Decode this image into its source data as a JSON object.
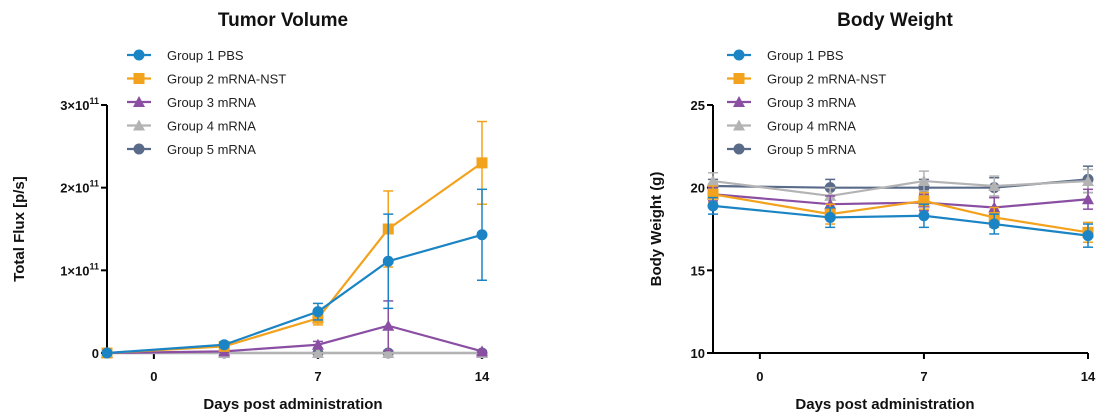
{
  "chart_data": [
    {
      "type": "line",
      "title": "Tumor Volume",
      "xlabel": "Days post administration",
      "ylabel": "Total Flux [p/s]",
      "xlim": [
        -2,
        14
      ],
      "ylim": [
        0,
        300000000000
      ],
      "xticks": [
        0,
        7,
        14
      ],
      "xtick_labels": [
        "0",
        "7",
        "14"
      ],
      "yticks": [
        0,
        100000000000,
        200000000000,
        300000000000
      ],
      "ytick_labels": [
        {
          "mant": "0",
          "exp": ""
        },
        {
          "mant": "1×10",
          "exp": "11"
        },
        {
          "mant": "2×10",
          "exp": "11"
        },
        {
          "mant": "3×10",
          "exp": "11"
        }
      ],
      "legend_position": "top-left",
      "series": [
        {
          "name": "Group 1 PBS",
          "color": "#1b84c4",
          "marker": "circle",
          "x": [
            -2,
            3,
            7,
            10,
            14
          ],
          "y": [
            0,
            10000000000,
            50000000000,
            111000000000,
            143000000000
          ],
          "err": [
            0,
            3000000000,
            10000000000,
            57000000000,
            55000000000
          ]
        },
        {
          "name": "Group 2 mRNA-NST",
          "color": "#f2a21c",
          "marker": "square",
          "x": [
            -2,
            3,
            7,
            10,
            14
          ],
          "y": [
            0,
            8000000000,
            42000000000,
            150000000000,
            230000000000
          ],
          "err": [
            0,
            3000000000,
            8000000000,
            46000000000,
            50000000000
          ]
        },
        {
          "name": "Group 3 mRNA",
          "color": "#8a4fa3",
          "marker": "triangle",
          "x": [
            -2,
            3,
            7,
            10,
            14
          ],
          "y": [
            0,
            2000000000,
            10000000000,
            33000000000,
            2000000000
          ],
          "err": [
            0,
            1000000000,
            4000000000,
            30000000000,
            1000000000
          ]
        },
        {
          "name": "Group 4 mRNA",
          "color": "#b3b3b3",
          "marker": "triangle",
          "x": [
            -2,
            3,
            7,
            10,
            14
          ],
          "y": [
            0,
            0,
            0,
            0,
            0
          ],
          "err": [
            0,
            0,
            0,
            0,
            0
          ]
        },
        {
          "name": "Group 5 mRNA",
          "color": "#5a6b89",
          "marker": "circle",
          "x": [
            -2,
            3,
            7,
            10,
            14
          ],
          "y": [
            0,
            0,
            0,
            0,
            0
          ],
          "err": [
            0,
            0,
            0,
            0,
            0
          ]
        }
      ]
    },
    {
      "type": "line",
      "title": "Body Weight",
      "xlabel": "Days post administration",
      "ylabel": "Body Weight (g)",
      "xlim": [
        -2,
        14
      ],
      "ylim": [
        10,
        25
      ],
      "xticks": [
        0,
        7,
        14
      ],
      "xtick_labels": [
        "0",
        "7",
        "14"
      ],
      "yticks": [
        10,
        15,
        20,
        25
      ],
      "ytick_labels": [
        {
          "mant": "10",
          "exp": ""
        },
        {
          "mant": "15",
          "exp": ""
        },
        {
          "mant": "20",
          "exp": ""
        },
        {
          "mant": "25",
          "exp": ""
        }
      ],
      "legend_position": "top-left",
      "series": [
        {
          "name": "Group 1 PBS",
          "color": "#1b84c4",
          "marker": "circle",
          "x": [
            -2,
            3,
            7,
            10,
            14
          ],
          "y": [
            18.9,
            18.2,
            18.3,
            17.8,
            17.1
          ],
          "err": [
            0.5,
            0.6,
            0.7,
            0.6,
            0.7
          ]
        },
        {
          "name": "Group 2 mRNA-NST",
          "color": "#f2a21c",
          "marker": "square",
          "x": [
            -2,
            3,
            7,
            10,
            14
          ],
          "y": [
            19.6,
            18.4,
            19.2,
            18.2,
            17.3
          ],
          "err": [
            0.5,
            0.6,
            0.5,
            0.6,
            0.6
          ]
        },
        {
          "name": "Group 3 mRNA",
          "color": "#8a4fa3",
          "marker": "triangle",
          "x": [
            -2,
            3,
            7,
            10,
            14
          ],
          "y": [
            19.6,
            19.0,
            19.1,
            18.8,
            19.3
          ],
          "err": [
            0.4,
            0.5,
            0.5,
            0.6,
            0.6
          ]
        },
        {
          "name": "Group 4 mRNA",
          "color": "#b3b3b3",
          "marker": "triangle",
          "x": [
            -2,
            3,
            7,
            10,
            14
          ],
          "y": [
            20.4,
            19.5,
            20.4,
            20.1,
            20.4
          ],
          "err": [
            0.5,
            0.5,
            0.6,
            0.6,
            0.7
          ]
        },
        {
          "name": "Group 5 mRNA",
          "color": "#5a6b89",
          "marker": "circle",
          "x": [
            -2,
            3,
            7,
            10,
            14
          ],
          "y": [
            20.1,
            20.0,
            20.0,
            20.0,
            20.5
          ],
          "err": [
            0.4,
            0.5,
            0.5,
            0.6,
            0.8
          ]
        }
      ]
    }
  ]
}
